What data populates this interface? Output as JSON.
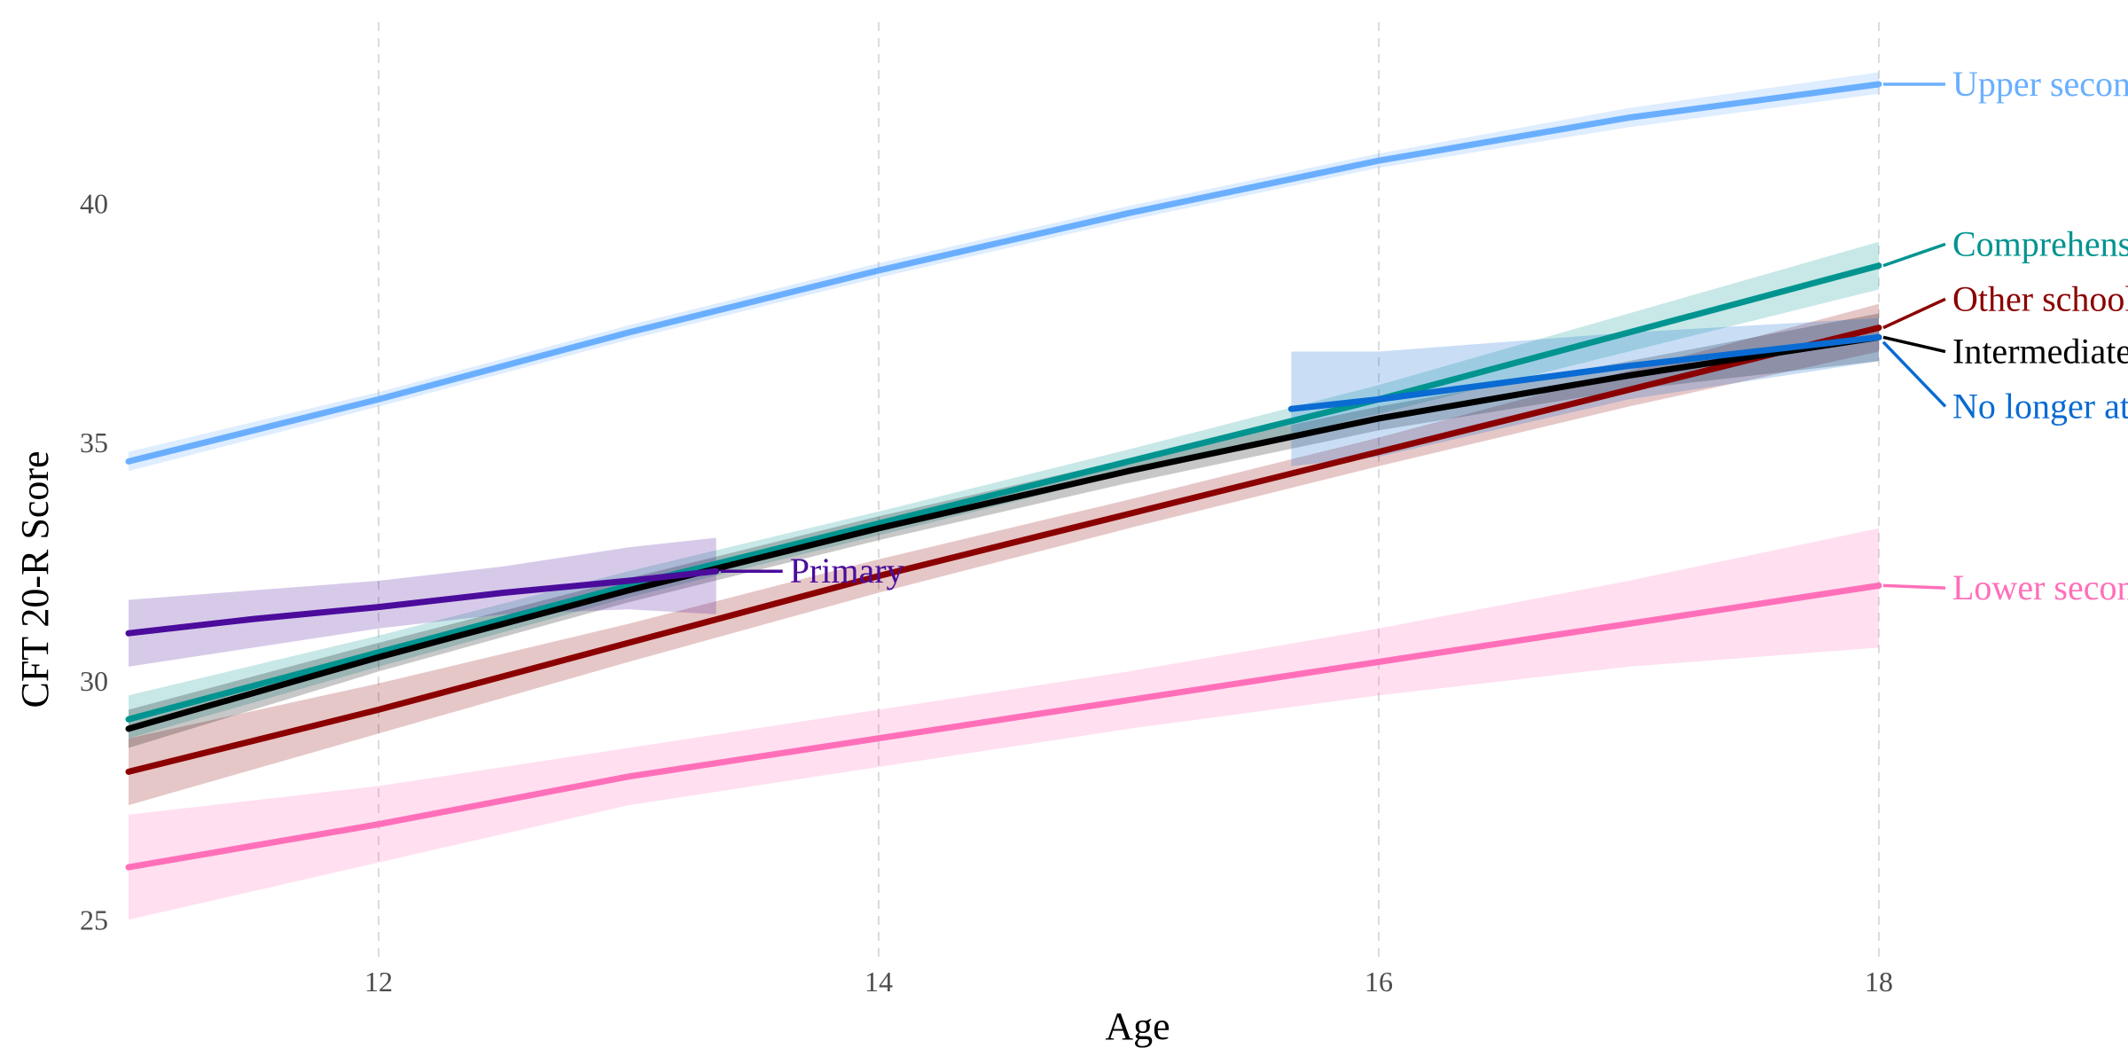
{
  "chart_data": {
    "type": "line",
    "xlabel": "Age",
    "ylabel": "CFT 20-R Score",
    "xlim": [
      11,
      18.5
    ],
    "ylim": [
      24.3,
      43.8
    ],
    "xticks": [
      12,
      14,
      16,
      18
    ],
    "yticks": [
      25,
      30,
      35,
      40
    ],
    "grid": "vertical dashed",
    "legend": "direct labels at right end of lines",
    "series": [
      {
        "name": "Upper secondary",
        "color": "#6aafff",
        "x": [
          11,
          12,
          13,
          14,
          15,
          16,
          17,
          18
        ],
        "y": [
          34.6,
          35.9,
          37.3,
          38.6,
          39.8,
          40.9,
          41.8,
          42.5
        ],
        "lower": [
          34.4,
          35.75,
          37.15,
          38.45,
          39.65,
          40.75,
          41.6,
          42.3
        ],
        "upper": [
          34.8,
          36.05,
          37.45,
          38.75,
          39.95,
          41.05,
          42.0,
          42.75
        ]
      },
      {
        "name": "Comprehensive school",
        "color": "#009490",
        "x": [
          11,
          12,
          13,
          14,
          15,
          16,
          17,
          18
        ],
        "y": [
          29.2,
          30.6,
          32.0,
          33.3,
          34.6,
          35.9,
          37.3,
          38.7
        ],
        "lower": [
          28.8,
          30.3,
          31.75,
          33.05,
          34.35,
          35.6,
          36.9,
          38.2
        ],
        "upper": [
          29.7,
          30.95,
          32.3,
          33.55,
          34.85,
          36.2,
          37.7,
          39.2
        ]
      },
      {
        "name": "Other school",
        "color": "#8b0000",
        "x": [
          11,
          12,
          13,
          14,
          15,
          16,
          17,
          18
        ],
        "y": [
          28.1,
          29.4,
          30.8,
          32.2,
          33.5,
          34.8,
          36.1,
          37.4
        ],
        "lower": [
          27.4,
          28.9,
          30.4,
          31.85,
          33.2,
          34.5,
          35.75,
          36.9
        ],
        "upper": [
          28.8,
          29.95,
          31.2,
          32.55,
          33.8,
          35.1,
          36.5,
          37.9
        ]
      },
      {
        "name": "Intermediate secondary",
        "color": "#000000",
        "x": [
          11,
          12,
          13,
          14,
          15,
          16,
          17,
          18
        ],
        "y": [
          29.0,
          30.5,
          31.9,
          33.2,
          34.4,
          35.5,
          36.4,
          37.2
        ],
        "lower": [
          28.6,
          30.2,
          31.65,
          32.95,
          34.15,
          35.25,
          36.1,
          36.7
        ],
        "upper": [
          29.4,
          30.8,
          32.15,
          33.45,
          34.65,
          35.75,
          36.7,
          37.7
        ]
      },
      {
        "name": "No longer at school",
        "color": "#0a6bd2",
        "x": [
          15.65,
          16,
          17,
          18
        ],
        "y": [
          35.7,
          35.9,
          36.6,
          37.2
        ],
        "lower": [
          34.5,
          34.7,
          35.9,
          36.7
        ],
        "upper": [
          36.9,
          36.9,
          37.3,
          37.6
        ]
      },
      {
        "name": "Primary",
        "color": "#4b0c9c",
        "x": [
          11,
          11.5,
          12,
          12.5,
          13,
          13.35
        ],
        "y": [
          31.0,
          31.3,
          31.55,
          31.85,
          32.1,
          32.3
        ],
        "lower": [
          30.3,
          30.7,
          31.1,
          31.4,
          31.5,
          31.4
        ],
        "upper": [
          31.7,
          31.9,
          32.1,
          32.4,
          32.8,
          33.0
        ]
      },
      {
        "name": "Lower secondary",
        "color": "#ff6fb9",
        "x": [
          11,
          12,
          13,
          14,
          15,
          16,
          17,
          18
        ],
        "y": [
          26.1,
          27.0,
          28.0,
          28.8,
          29.6,
          30.4,
          31.2,
          32.0
        ],
        "lower": [
          25.0,
          26.2,
          27.4,
          28.2,
          29.0,
          29.7,
          30.3,
          30.7
        ],
        "upper": [
          27.2,
          27.8,
          28.6,
          29.4,
          30.2,
          31.1,
          32.1,
          33.2
        ]
      }
    ]
  },
  "labels": [
    {
      "name": "Upper secondary",
      "text": "Upper secondary",
      "color": "#6aafff",
      "anchor": [
        18.0,
        42.5
      ],
      "y": 42.5
    },
    {
      "name": "Comprehensive school",
      "text": "Comprehensive school",
      "color": "#009490",
      "anchor": [
        18.0,
        38.7
      ],
      "y": 39.15
    },
    {
      "name": "Other school",
      "text": "Other school",
      "color": "#8b0000",
      "anchor": [
        18.0,
        37.4
      ],
      "y": 38.0
    },
    {
      "name": "Intermediate secondary",
      "text": "Intermediate secondary",
      "color": "#000000",
      "anchor": [
        18.0,
        37.2
      ],
      "y": 36.9
    },
    {
      "name": "No longer at school",
      "text": "No longer at school",
      "color": "#0a6bd2",
      "anchor": [
        18.0,
        37.1
      ],
      "y": 35.75
    },
    {
      "name": "Primary",
      "text": "Primary",
      "color": "#4b0c9c",
      "anchor": [
        13.35,
        32.3
      ],
      "y": 32.3
    },
    {
      "name": "Lower secondary",
      "text": "Lower secondary",
      "color": "#ff6fb9",
      "anchor": [
        18.0,
        32.0
      ],
      "y": 31.95
    }
  ]
}
